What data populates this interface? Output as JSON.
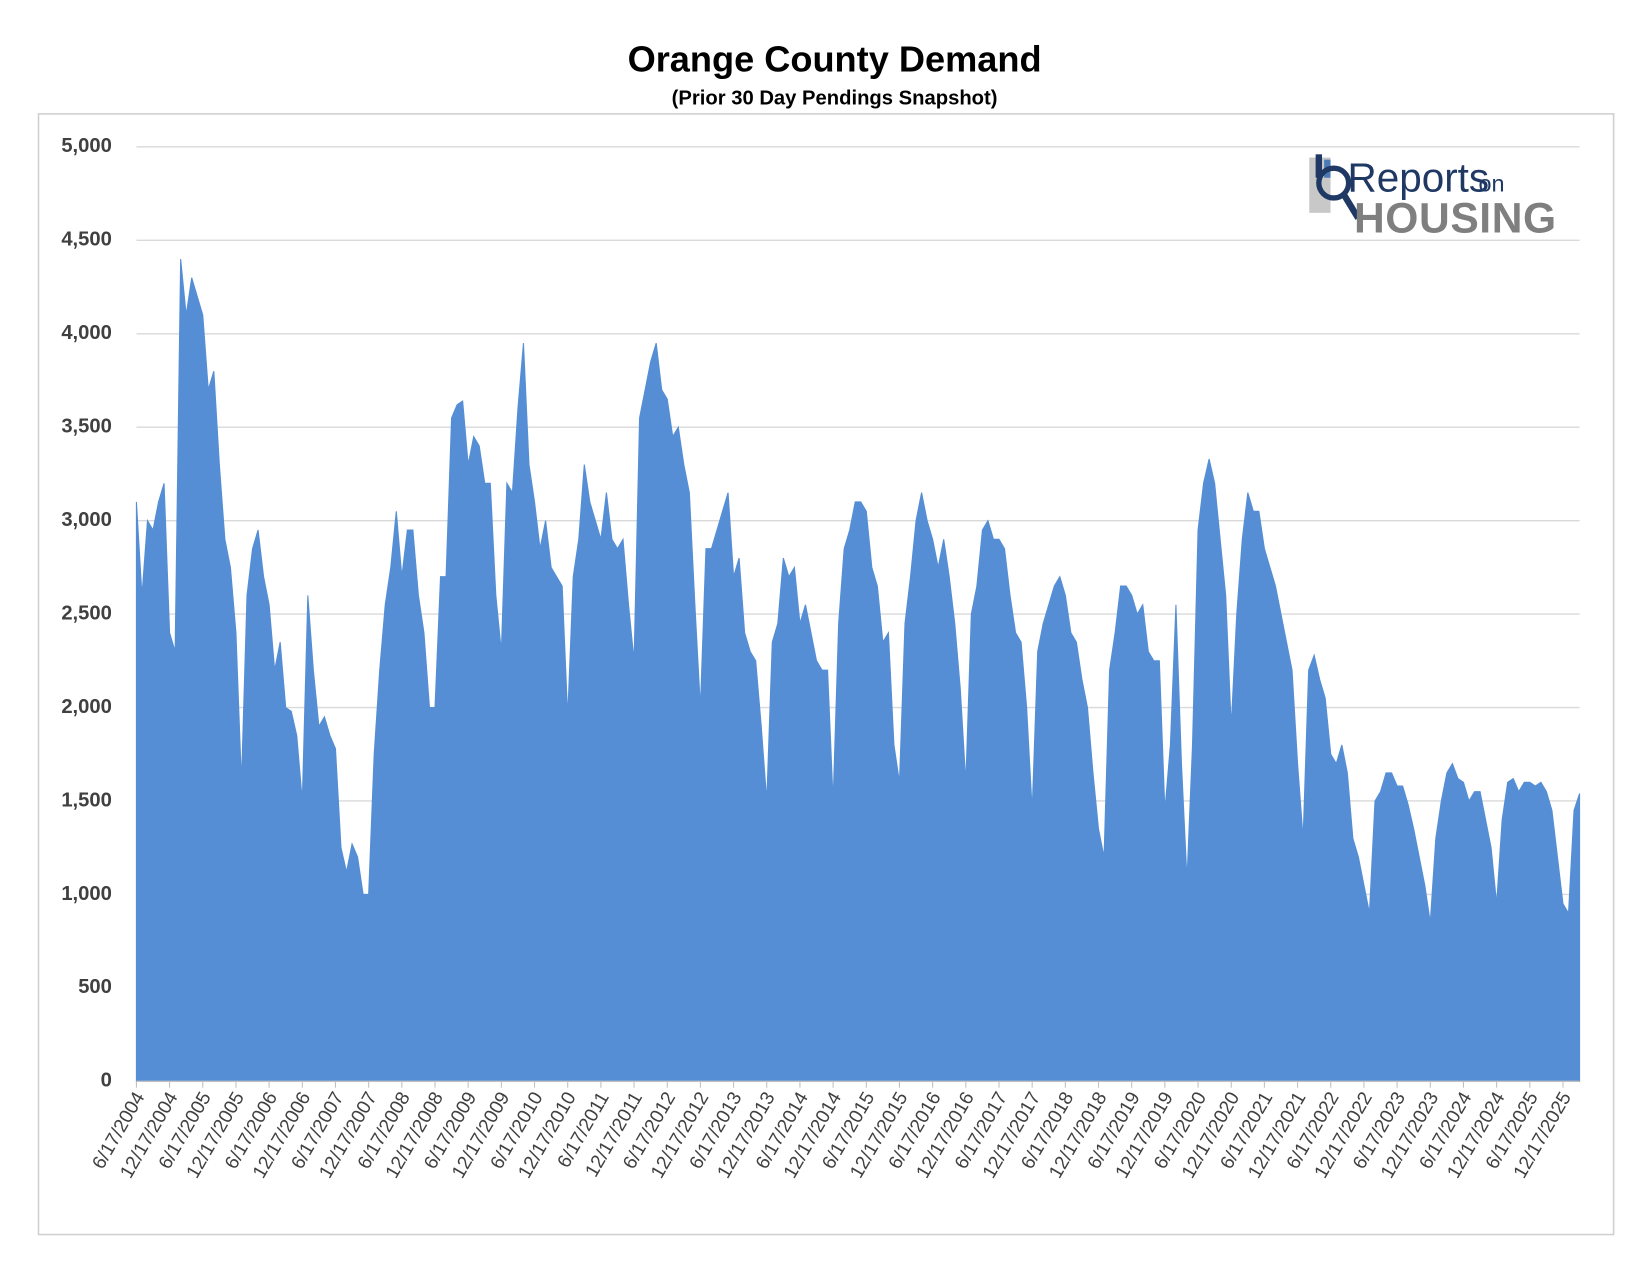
{
  "chart_data": {
    "type": "area",
    "title": "Orange County Demand",
    "subtitle": "(Prior 30 Day Pendings Snapshot)",
    "logo": {
      "text1": "Reports",
      "text2": "on",
      "text3": "HOUSING"
    },
    "color": "#558ed5",
    "grid": true,
    "ylim": [
      0,
      5000
    ],
    "yticks": [
      0,
      500,
      {
        "value": 1000,
        "label": "1,000"
      },
      {
        "value": 1500,
        "label": "1,500"
      },
      {
        "value": 2000,
        "label": "2,000"
      },
      {
        "value": 2500,
        "label": "2,500"
      },
      {
        "value": 3000,
        "label": "3,000"
      },
      {
        "value": 3500,
        "label": "3,500"
      },
      {
        "value": 4000,
        "label": "4,000"
      },
      {
        "value": 4500,
        "label": "4,500"
      },
      {
        "value": 5000,
        "label": "5,000"
      }
    ],
    "categories": [
      "6/17/2004",
      null,
      null,
      null,
      null,
      null,
      "12/17/2004",
      null,
      null,
      null,
      null,
      null,
      "6/17/2005",
      null,
      null,
      null,
      null,
      null,
      "12/17/2005",
      null,
      null,
      null,
      null,
      null,
      "6/17/2006",
      null,
      null,
      null,
      null,
      null,
      "12/17/2006",
      null,
      null,
      null,
      null,
      null,
      "6/17/2007",
      null,
      null,
      null,
      null,
      null,
      "12/17/2007",
      null,
      null,
      null,
      null,
      null,
      "6/17/2008",
      null,
      null,
      null,
      null,
      null,
      "12/17/2008",
      null,
      null,
      null,
      null,
      null,
      "6/17/2009",
      null,
      null,
      null,
      null,
      null,
      "12/17/2009",
      null,
      null,
      null,
      null,
      null,
      "6/17/2010",
      null,
      null,
      null,
      null,
      null,
      "12/17/2010",
      null,
      null,
      null,
      null,
      null,
      "6/17/2011",
      null,
      null,
      null,
      null,
      null,
      "12/17/2011",
      null,
      null,
      null,
      null,
      null,
      "6/17/2012",
      null,
      null,
      null,
      null,
      null,
      "12/17/2012",
      null,
      null,
      null,
      null,
      null,
      "6/17/2013",
      null,
      null,
      null,
      null,
      null,
      "12/17/2013",
      null,
      null,
      null,
      null,
      null,
      "6/17/2014",
      null,
      null,
      null,
      null,
      null,
      "12/17/2014",
      null,
      null,
      null,
      null,
      null,
      "6/17/2015",
      null,
      null,
      null,
      null,
      null,
      "12/17/2015",
      null,
      null,
      null,
      null,
      null,
      "6/17/2016",
      null,
      null,
      null,
      null,
      null,
      "12/17/2016",
      null,
      null,
      null,
      null,
      null,
      "6/17/2017",
      null,
      null,
      null,
      null,
      null,
      "12/17/2017",
      null,
      null,
      null,
      null,
      null,
      "6/17/2018",
      null,
      null,
      null,
      null,
      null,
      "12/17/2018",
      null,
      null,
      null,
      null,
      null,
      "6/17/2019",
      null,
      null,
      null,
      null,
      null,
      "12/17/2019",
      null,
      null,
      null,
      null,
      null,
      "6/17/2020",
      null,
      null,
      null,
      null,
      null,
      "12/17/2020",
      null,
      null,
      null,
      null,
      null,
      "6/17/2021",
      null,
      null,
      null,
      null,
      null,
      "12/17/2021",
      null,
      null,
      null,
      null,
      null,
      "6/17/2022",
      null,
      null,
      null,
      null,
      null,
      "12/17/2022",
      null,
      null,
      null,
      null,
      null,
      "6/17/2023",
      null,
      null,
      null,
      null,
      null,
      "12/17/2023",
      null,
      null,
      null,
      null,
      null,
      "6/17/2024",
      null,
      null,
      null,
      null,
      null,
      "12/17/2024",
      null,
      null,
      null,
      null,
      null,
      "6/17/2025",
      null,
      null,
      null,
      null,
      null,
      "12/17/2025",
      null,
      null,
      null
    ],
    "values": [
      3100,
      2600,
      3000,
      2950,
      3100,
      3200,
      2400,
      2300,
      4400,
      4100,
      4300,
      4200,
      4100,
      3700,
      3800,
      3300,
      2900,
      2750,
      2400,
      1600,
      2600,
      2850,
      2950,
      2700,
      2550,
      2200,
      2350,
      2000,
      1980,
      1850,
      1500,
      2600,
      2200,
      1900,
      1950,
      1850,
      1780,
      1250,
      1120,
      1270,
      1200,
      1000,
      1000,
      1750,
      2200,
      2550,
      2750,
      3050,
      2700,
      2950,
      2950,
      2600,
      2400,
      2000,
      2000,
      2700,
      2700,
      3550,
      3620,
      3640,
      3300,
      3450,
      3400,
      3200,
      3200,
      2600,
      2300,
      3200,
      3150,
      3600,
      3950,
      3300,
      3100,
      2850,
      3000,
      2750,
      2700,
      2650,
      1950,
      2700,
      2900,
      3300,
      3100,
      3000,
      2900,
      3150,
      2900,
      2850,
      2900,
      2550,
      2250,
      3550,
      3700,
      3850,
      3950,
      3700,
      3650,
      3450,
      3500,
      3300,
      3150,
      2550,
      2000,
      2850,
      2850,
      2950,
      3050,
      3150,
      2700,
      2800,
      2400,
      2300,
      2250,
      1900,
      1500,
      2350,
      2450,
      2800,
      2700,
      2750,
      2450,
      2550,
      2400,
      2250,
      2200,
      2200,
      1500,
      2450,
      2850,
      2950,
      3100,
      3100,
      3050,
      2750,
      2650,
      2350,
      2400,
      1800,
      1600,
      2450,
      2700,
      3000,
      3150,
      3000,
      2900,
      2750,
      2900,
      2700,
      2450,
      2100,
      1600,
      2500,
      2650,
      2950,
      3000,
      2900,
      2900,
      2850,
      2600,
      2400,
      2350,
      2000,
      1450,
      2300,
      2450,
      2550,
      2650,
      2700,
      2600,
      2400,
      2350,
      2150,
      2000,
      1650,
      1350,
      1200,
      2200,
      2400,
      2650,
      2650,
      2600,
      2500,
      2550,
      2300,
      2250,
      2250,
      1450,
      1800,
      2550,
      1700,
      1080,
      1800,
      2950,
      3200,
      3330,
      3200,
      2900,
      2600,
      1900,
      2500,
      2900,
      3150,
      3050,
      3050,
      2850,
      2750,
      2650,
      2500,
      2350,
      2200,
      1700,
      1300,
      2200,
      2280,
      2150,
      2050,
      1750,
      1700,
      1800,
      1650,
      1300,
      1200,
      1050,
      900,
      1500,
      1550,
      1650,
      1650,
      1580,
      1580,
      1480,
      1350,
      1200,
      1050,
      850,
      1300,
      1500,
      1650,
      1700,
      1620,
      1600,
      1500,
      1550,
      1550,
      1400,
      1250,
      950,
      1400,
      1600,
      1620,
      1550,
      1600,
      1600,
      1580,
      1600,
      1550,
      1450,
      1200,
      950,
      900,
      1450,
      1540
    ]
  }
}
